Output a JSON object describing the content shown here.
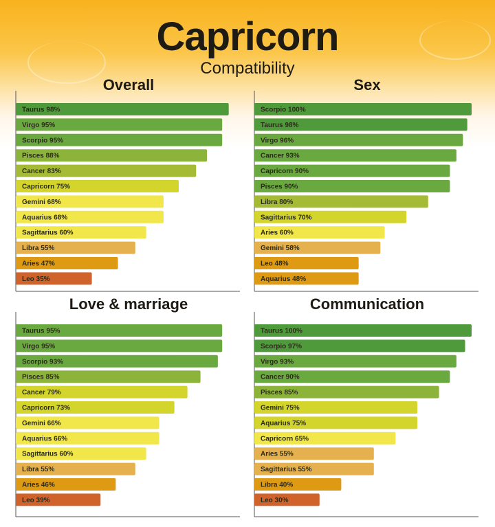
{
  "title": "Capricorn",
  "subtitle": "Compatibility",
  "color_scale": [
    {
      "min": 97,
      "color": "#4f9a3b"
    },
    {
      "min": 90,
      "color": "#6aa840"
    },
    {
      "min": 84,
      "color": "#8db43a"
    },
    {
      "min": 80,
      "color": "#a5bb36"
    },
    {
      "min": 70,
      "color": "#d3d42c"
    },
    {
      "min": 60,
      "color": "#f1e64a"
    },
    {
      "min": 55,
      "color": "#e5b14e"
    },
    {
      "min": 40,
      "color": "#df9a14"
    },
    {
      "min": 0,
      "color": "#d0632b"
    }
  ],
  "chart_data": [
    {
      "type": "bar",
      "title": "Overall",
      "xlim": [
        0,
        100
      ],
      "categories": [
        "Taurus",
        "Virgo",
        "Scorpio",
        "Pisces",
        "Cancer",
        "Capricorn",
        "Gemini",
        "Aquarius",
        "Sagittarius",
        "Libra",
        "Aries",
        "Leo"
      ],
      "values": [
        98,
        95,
        95,
        88,
        83,
        75,
        68,
        68,
        60,
        55,
        47,
        35
      ]
    },
    {
      "type": "bar",
      "title": "Sex",
      "xlim": [
        0,
        100
      ],
      "categories": [
        "Scorpio",
        "Taurus",
        "Virgo",
        "Cancer",
        "Capricorn",
        "Pisces",
        "Libra",
        "Sagittarius",
        "Aries",
        "Gemini",
        "Leo",
        "Aquarius"
      ],
      "values": [
        100,
        98,
        96,
        93,
        90,
        90,
        80,
        70,
        60,
        58,
        48,
        48
      ]
    },
    {
      "type": "bar",
      "title": "Love & marriage",
      "xlim": [
        0,
        100
      ],
      "categories": [
        "Taurus",
        "Virgo",
        "Scorpio",
        "Pisces",
        "Cancer",
        "Capricorn",
        "Gemini",
        "Aquarius",
        "Sagittarius",
        "Libra",
        "Aries",
        "Leo"
      ],
      "values": [
        95,
        95,
        93,
        85,
        79,
        73,
        66,
        66,
        60,
        55,
        46,
        39
      ]
    },
    {
      "type": "bar",
      "title": "Communication",
      "xlim": [
        0,
        100
      ],
      "categories": [
        "Taurus",
        "Scorpio",
        "Virgo",
        "Cancer",
        "Pisces",
        "Gemini",
        "Aquarius",
        "Capricorn",
        "Aries",
        "Sagittarius",
        "Libra",
        "Leo"
      ],
      "values": [
        100,
        97,
        93,
        90,
        85,
        75,
        75,
        65,
        55,
        55,
        40,
        30
      ]
    }
  ]
}
